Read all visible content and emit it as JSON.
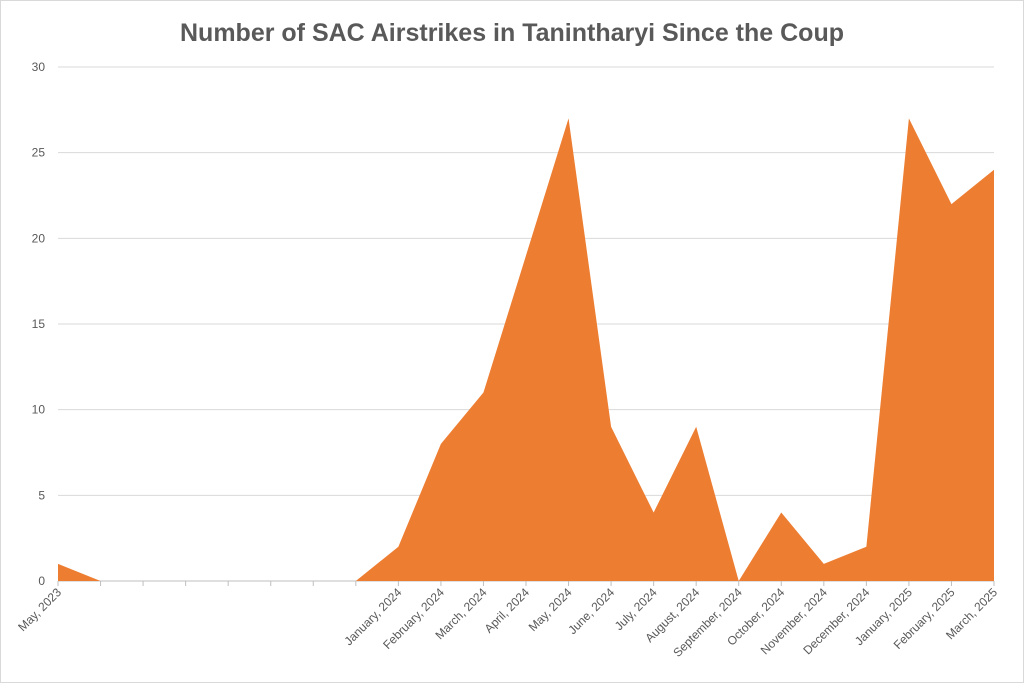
{
  "chart_data": {
    "type": "area",
    "title": "Number of SAC Airstrikes in Tanintharyi Since the Coup",
    "xlabel": "",
    "ylabel": "",
    "ylim": [
      0,
      30
    ],
    "yticks": [
      0,
      5,
      10,
      15,
      20,
      25,
      30
    ],
    "grid": true,
    "legend": "none",
    "color": "#ED7D31",
    "categories": [
      "May, 2023",
      "",
      "",
      "",
      "",
      "",
      "",
      "",
      "January, 2024",
      "February, 2024",
      "March, 2024",
      "April, 2024",
      "May, 2024",
      "June, 2024",
      "July, 2024",
      "August, 2024",
      "September, 2024",
      "October, 2024",
      "November, 2024",
      "December, 2024",
      "January, 2025",
      "February, 2025",
      "March, 2025"
    ],
    "values": [
      1,
      0,
      0,
      0,
      0,
      0,
      0,
      0,
      2,
      8,
      11,
      19,
      27,
      9,
      4,
      9,
      0,
      4,
      1,
      2,
      27,
      22,
      24
    ]
  }
}
